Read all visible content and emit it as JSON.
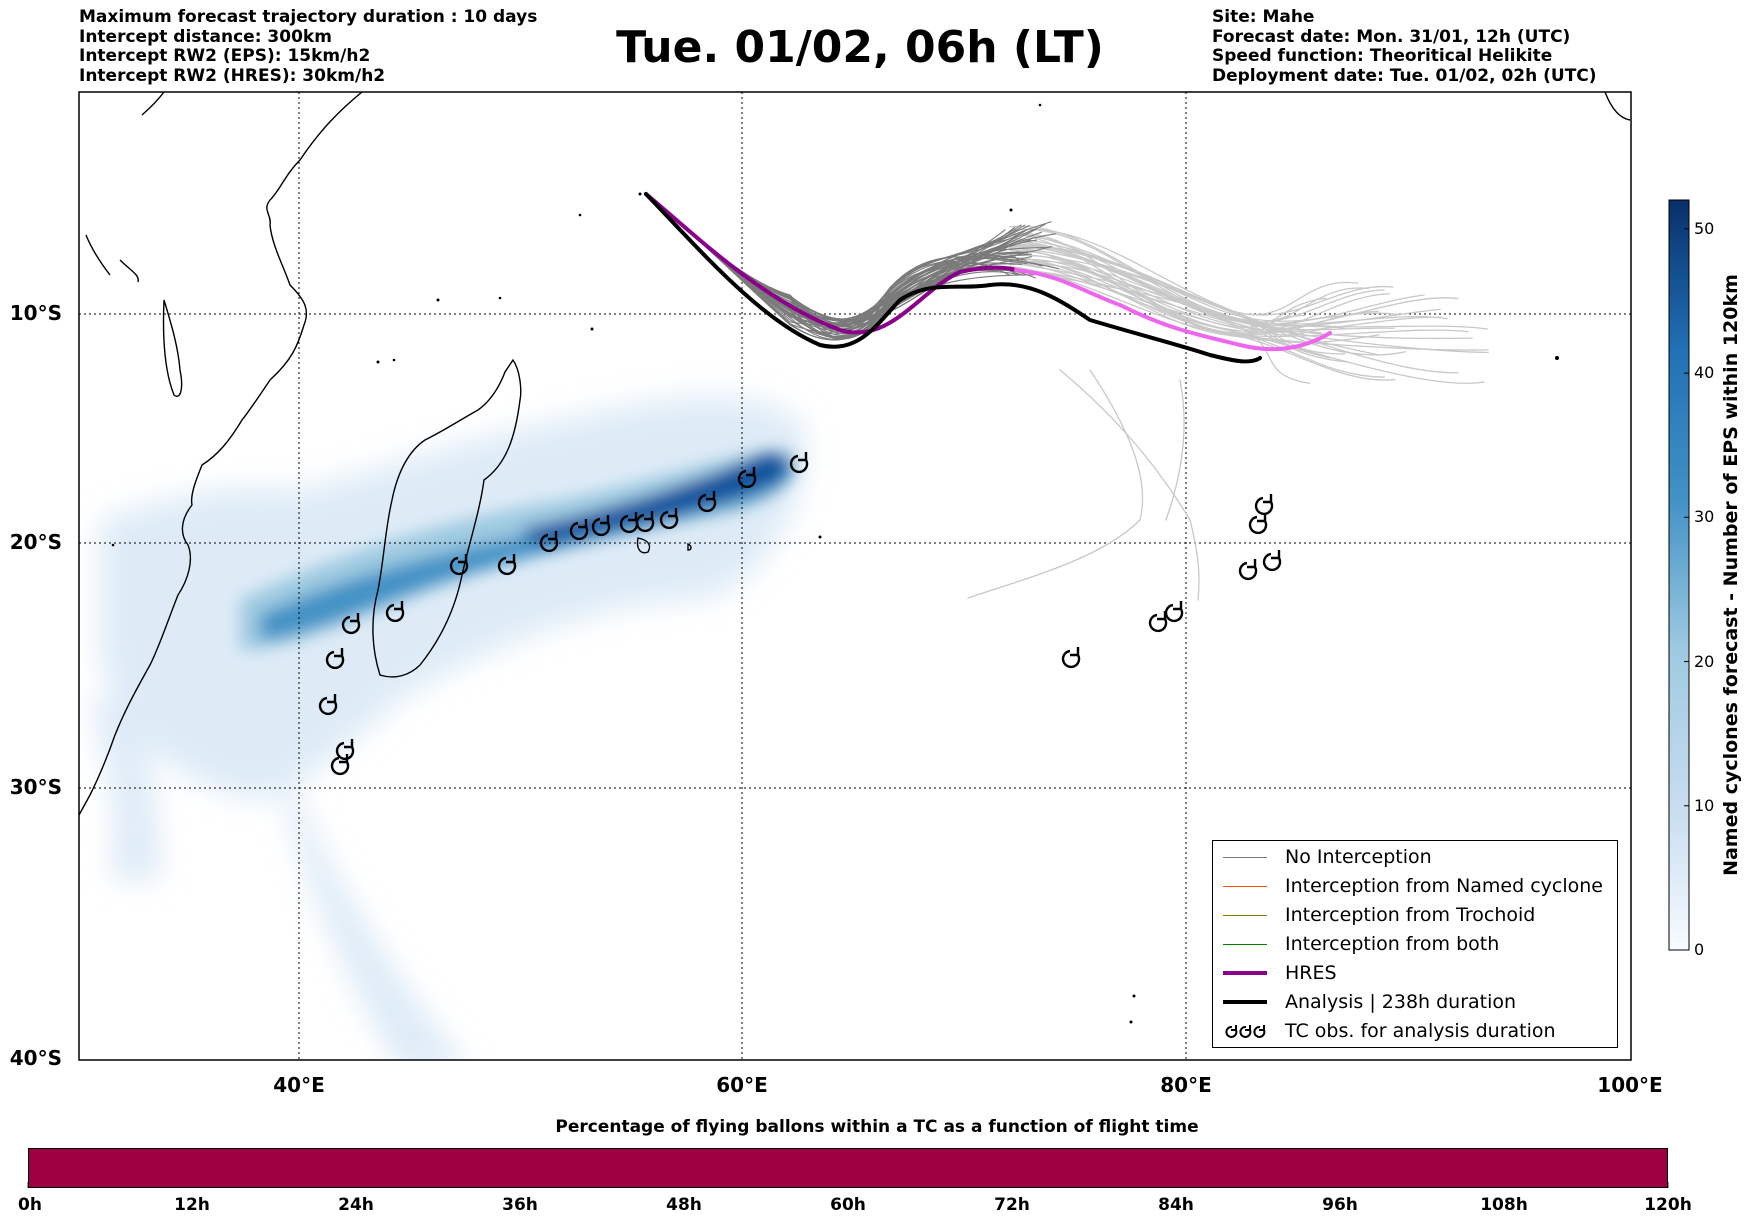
{
  "header_left": [
    "Maximum forecast trajectory duration : 10 days",
    "Intercept distance: 300km",
    "Intercept RW2 (EPS):  15km/h2",
    "Intercept RW2 (HRES): 30km/h2"
  ],
  "title": "Tue. 01/02, 06h (LT)",
  "header_right": [
    "Site: Mahe",
    "Forecast date: Mon. 31/01, 12h (UTC)",
    "Speed function: Theoritical Helikite",
    "Deployment date: Tue. 01/02, 02h (UTC)"
  ],
  "map": {
    "lat_labels": [
      "10°S",
      "20°S",
      "30°S",
      "40°S"
    ],
    "lon_labels": [
      "40°E",
      "60°E",
      "80°E",
      "100°E"
    ],
    "lon_range": [
      30,
      100
    ],
    "lat_range": [
      -40,
      1
    ],
    "colors": {
      "no_interception": "#7a7a7a",
      "ensemble_light": "#c8c8c8",
      "hres_dark": "#8b008b",
      "hres_light": "#ee66ee",
      "analysis": "#000000",
      "named_cyclone": "#ff5500",
      "trochoid": "#808000",
      "both": "#008000",
      "coast": "#000000"
    }
  },
  "legend": {
    "items": [
      {
        "label": "No Interception",
        "color": "#7a7a7a",
        "width": 1.5
      },
      {
        "label": "Interception from Named cyclone",
        "color": "#ff5500",
        "width": 1.5
      },
      {
        "label": "Interception from Trochoid",
        "color": "#808000",
        "width": 1.5
      },
      {
        "label": "Interception from both",
        "color": "#008000",
        "width": 1.5
      },
      {
        "label": "HRES",
        "color": "#8b008b",
        "width": 4
      },
      {
        "label": "Analysis | 238h duration",
        "color": "#000000",
        "width": 4
      },
      {
        "label": "TC obs. for analysis duration",
        "color": "",
        "width": 0
      }
    ],
    "tc_symbol": "ɑ"
  },
  "colorbar_right": {
    "label": "Named cyclones forecast - Number of EPS within 120km",
    "ticks": [
      "0",
      "10",
      "20",
      "30",
      "40",
      "50"
    ],
    "max": 52
  },
  "bottom": {
    "title": "Percentage of flying ballons within a TC as a function of flight time",
    "bar_color": "#9e0142",
    "ticks": [
      "0h",
      "12h",
      "24h",
      "36h",
      "48h",
      "60h",
      "72h",
      "84h",
      "96h",
      "108h",
      "120h"
    ]
  }
}
